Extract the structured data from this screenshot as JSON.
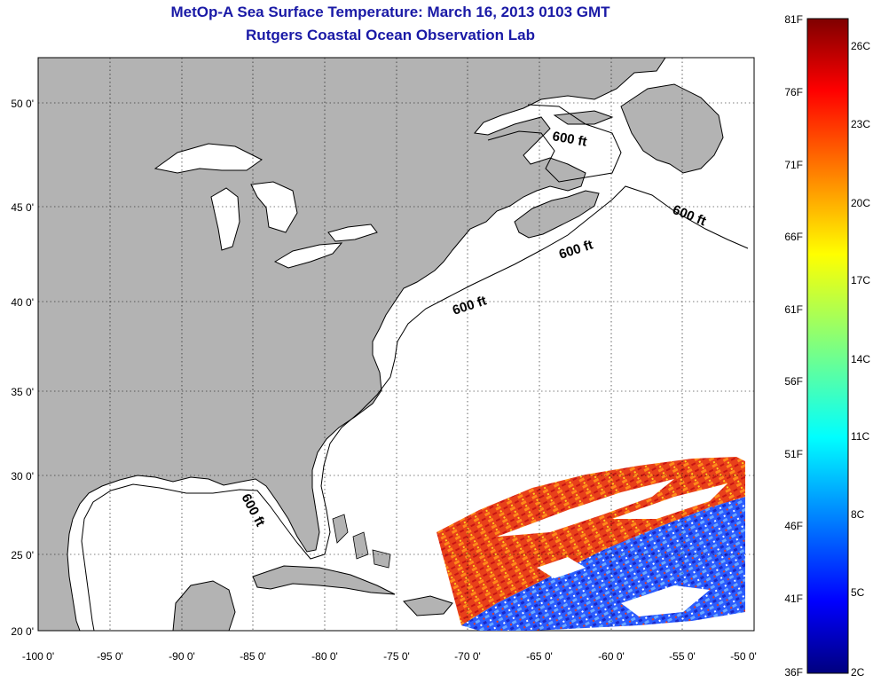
{
  "title": "MetOp-A Sea Surface Temperature:  March 16, 2013 0103 GMT",
  "subtitle": "Rutgers Coastal Ocean Observation Lab",
  "map": {
    "lon_ticks": [
      "-100 0'",
      "-95 0'",
      "-90 0'",
      "-85 0'",
      "-80 0'",
      "-75 0'",
      "-70 0'",
      "-65 0'",
      "-60 0'",
      "-55 0'",
      "-50 0'"
    ],
    "lat_ticks": [
      "20 0'",
      "25 0'",
      "30 0'",
      "35 0'",
      "40 0'",
      "45 0'",
      "50 0'"
    ],
    "depth_labels": [
      "600 ft",
      "600 ft",
      "600 ft",
      "600 ft",
      "600 ft"
    ],
    "colors": {
      "land": "#b3b3b3",
      "ocean": "#ffffff",
      "grid": "#000000"
    }
  },
  "colorbar": {
    "fahrenheit_labels": [
      "81F",
      "76F",
      "71F",
      "66F",
      "61F",
      "56F",
      "51F",
      "46F",
      "41F",
      "36F"
    ],
    "celsius_labels": [
      "26C",
      "23C",
      "20C",
      "17C",
      "14C",
      "11C",
      "8C",
      "5C",
      "2C"
    ]
  }
}
